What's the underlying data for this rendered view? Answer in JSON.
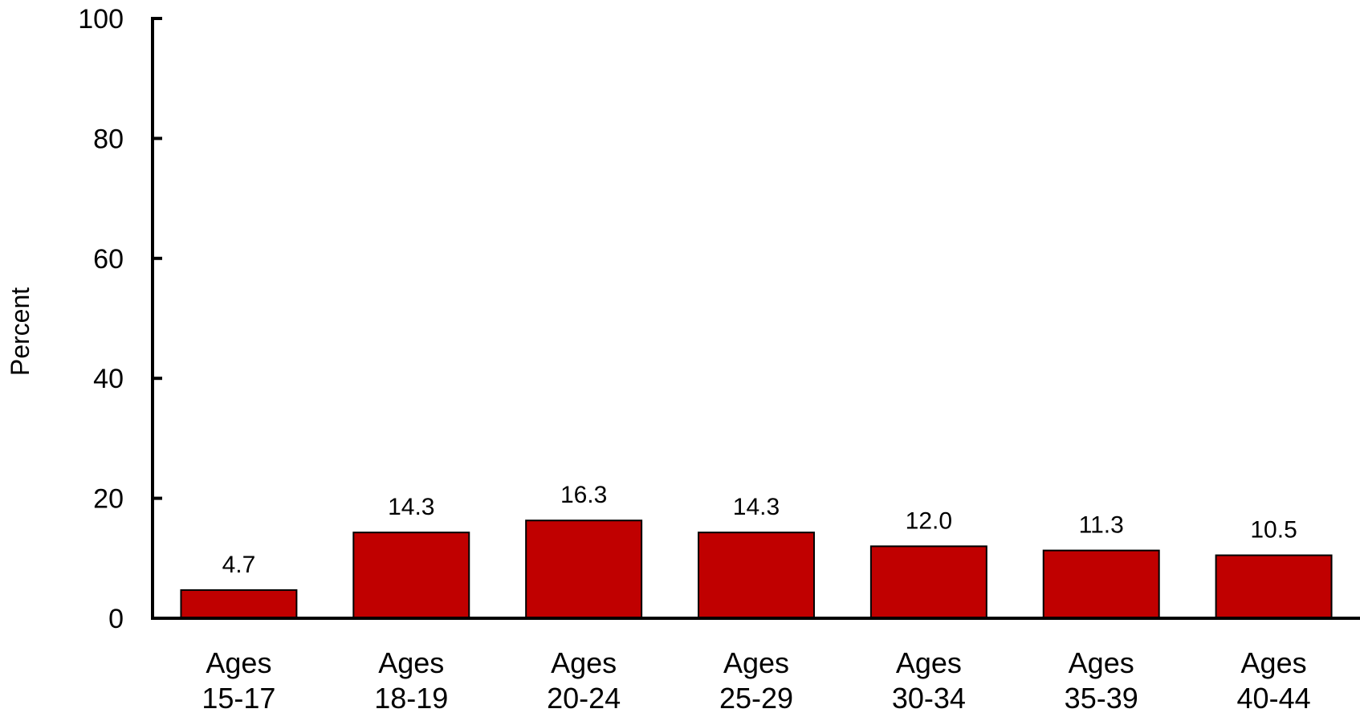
{
  "chart_data": {
    "type": "bar",
    "title": "",
    "xlabel": "",
    "ylabel": "Percent",
    "ylim": [
      0,
      100
    ],
    "yticks": [
      0,
      20,
      40,
      60,
      80,
      100
    ],
    "categories": [
      [
        "Ages",
        "15-17"
      ],
      [
        "Ages",
        "18-19"
      ],
      [
        "Ages",
        "20-24"
      ],
      [
        "Ages",
        "25-29"
      ],
      [
        "Ages",
        "30-34"
      ],
      [
        "Ages",
        "35-39"
      ],
      [
        "Ages",
        "40-44"
      ]
    ],
    "values": [
      4.7,
      14.3,
      16.3,
      14.3,
      12.0,
      11.3,
      10.5
    ],
    "value_labels": [
      "4.7",
      "14.3",
      "16.3",
      "14.3",
      "12.0",
      "11.3",
      "10.5"
    ],
    "grid": false,
    "legend": "none",
    "colors": {
      "bar_fill": "#C00000",
      "bar_stroke": "#000000",
      "axis": "#000000"
    }
  }
}
